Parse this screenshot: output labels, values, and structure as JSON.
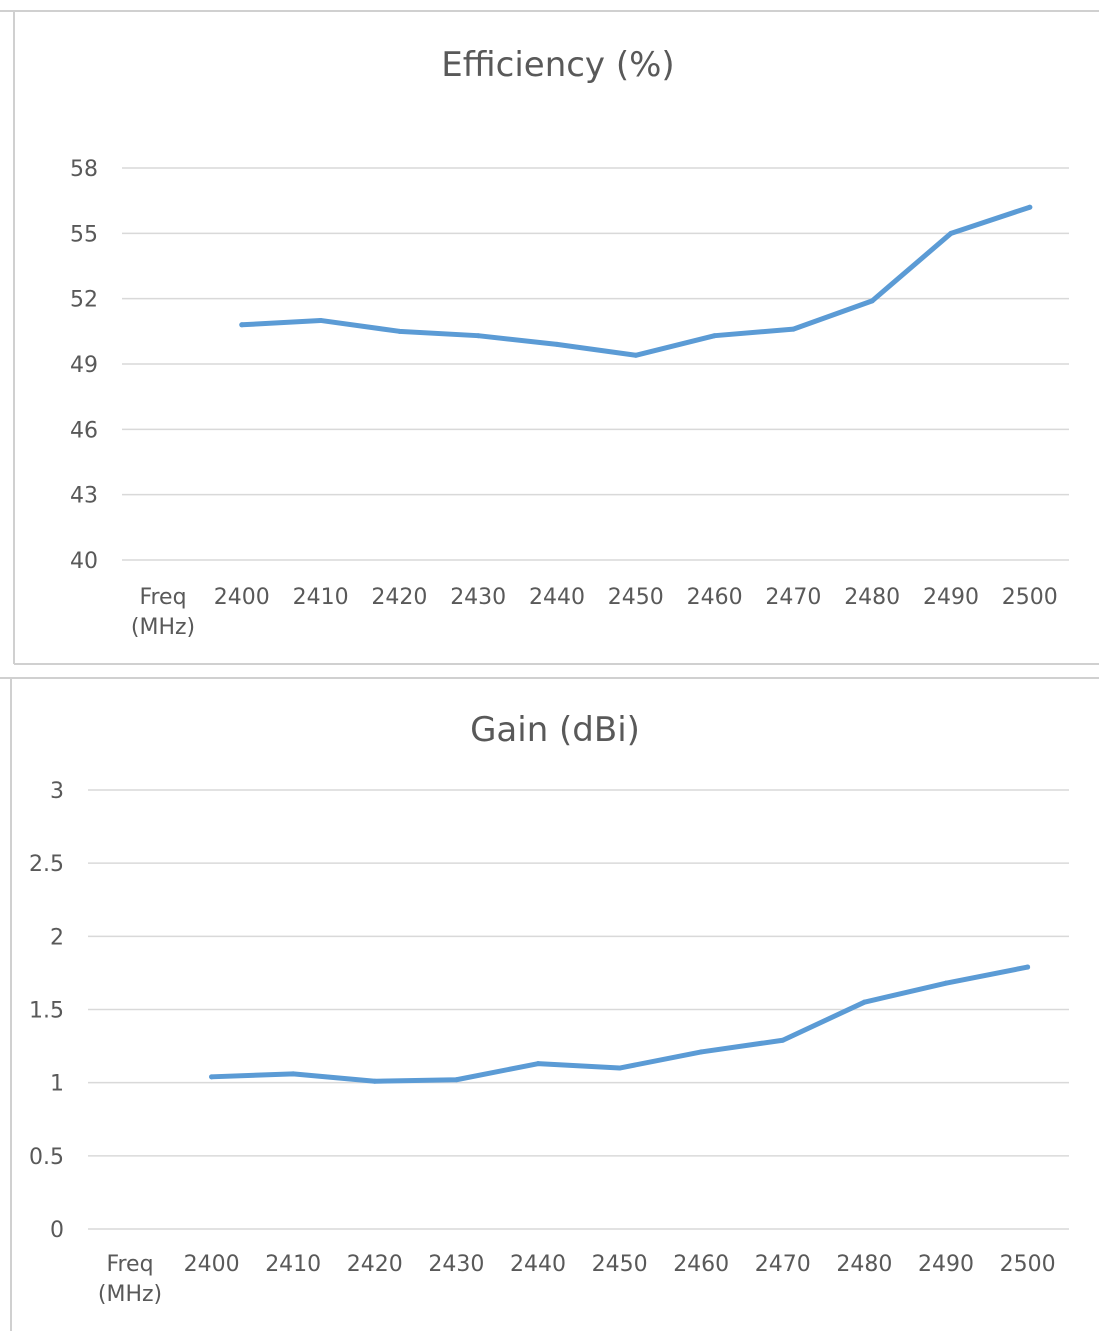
{
  "chart_data": [
    {
      "type": "line",
      "title": "Efficiency (%)",
      "categories": [
        "Freq (MHz)",
        "2400",
        "2410",
        "2420",
        "2430",
        "2440",
        "2450",
        "2460",
        "2470",
        "2480",
        "2490",
        "2500"
      ],
      "values": [
        null,
        50.8,
        51.0,
        50.5,
        50.3,
        49.9,
        49.4,
        50.3,
        50.6,
        51.9,
        55.0,
        56.2
      ],
      "ylim": [
        40,
        58
      ],
      "yticks": [
        40,
        43,
        46,
        49,
        52,
        55,
        58
      ],
      "grid": true,
      "series_color": "#5b9bd5"
    },
    {
      "type": "line",
      "title": "Gain (dBi)",
      "categories": [
        "Freq (MHz)",
        "2400",
        "2410",
        "2420",
        "2430",
        "2440",
        "2450",
        "2460",
        "2470",
        "2480",
        "2490",
        "2500"
      ],
      "values": [
        null,
        1.04,
        1.06,
        1.01,
        1.02,
        1.13,
        1.1,
        1.21,
        1.29,
        1.55,
        1.68,
        1.79
      ],
      "ylim": [
        0,
        3
      ],
      "yticks": [
        0,
        0.5,
        1,
        1.5,
        2,
        2.5,
        3
      ],
      "grid": true,
      "series_color": "#5b9bd5"
    }
  ]
}
